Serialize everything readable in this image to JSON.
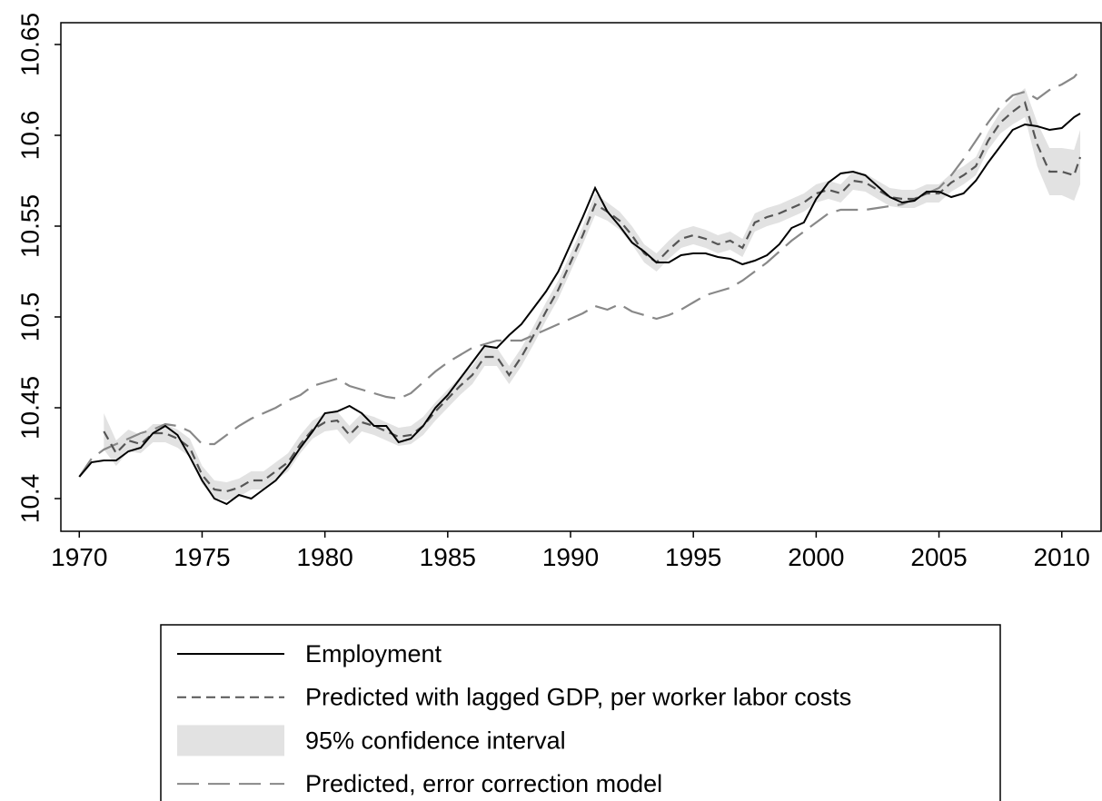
{
  "chart_data": {
    "type": "line",
    "x": [
      1970,
      1970.5,
      1971,
      1971.5,
      1972,
      1972.5,
      1973,
      1973.5,
      1974,
      1974.5,
      1975,
      1975.5,
      1976,
      1976.5,
      1977,
      1977.5,
      1978,
      1978.5,
      1979,
      1979.5,
      1980,
      1980.5,
      1981,
      1981.5,
      1982,
      1982.5,
      1983,
      1983.5,
      1984,
      1984.5,
      1985,
      1985.5,
      1986,
      1986.5,
      1987,
      1987.5,
      1988,
      1988.5,
      1989,
      1989.5,
      1990,
      1990.5,
      1991,
      1991.5,
      1992,
      1992.5,
      1993,
      1993.5,
      1994,
      1994.5,
      1995,
      1995.5,
      1996,
      1996.5,
      1997,
      1997.5,
      1998,
      1998.5,
      1999,
      1999.5,
      2000,
      2000.5,
      2001,
      2001.5,
      2002,
      2002.5,
      2003,
      2003.5,
      2004,
      2004.5,
      2005,
      2005.5,
      2006,
      2006.5,
      2007,
      2007.5,
      2008,
      2008.5,
      2009,
      2009.5,
      2010,
      2010.5,
      2010.75
    ],
    "series": [
      {
        "name": "Employment",
        "color": "#000000",
        "dash": "none",
        "values": [
          10.412,
          10.42,
          10.421,
          10.421,
          10.426,
          10.428,
          10.436,
          10.44,
          10.435,
          10.423,
          10.41,
          10.4,
          10.397,
          10.402,
          10.4,
          10.405,
          10.41,
          10.418,
          10.428,
          10.437,
          10.447,
          10.448,
          10.451,
          10.447,
          10.44,
          10.44,
          10.431,
          10.433,
          10.44,
          10.45,
          10.457,
          10.466,
          10.475,
          10.484,
          10.483,
          10.49,
          10.496,
          10.505,
          10.514,
          10.525,
          10.54,
          10.555,
          10.571,
          10.558,
          10.55,
          10.541,
          10.536,
          10.53,
          10.53,
          10.534,
          10.535,
          10.535,
          10.533,
          10.532,
          10.529,
          10.531,
          10.534,
          10.54,
          10.549,
          10.552,
          10.565,
          10.574,
          10.579,
          10.58,
          10.578,
          10.572,
          10.566,
          10.563,
          10.564,
          10.569,
          10.569,
          10.566,
          10.568,
          10.575,
          10.585,
          10.594,
          10.603,
          10.606,
          10.605,
          10.603,
          10.604,
          10.61,
          10.612
        ]
      },
      {
        "name": "Predicted with lagged GDP, per worker labor costs",
        "color": "#555555",
        "dash": "10,6",
        "values": [
          null,
          null,
          10.437,
          10.425,
          10.432,
          10.43,
          10.436,
          10.436,
          10.433,
          10.428,
          10.413,
          10.405,
          10.404,
          10.406,
          10.41,
          10.41,
          10.415,
          10.42,
          10.43,
          10.438,
          10.442,
          10.443,
          10.435,
          10.442,
          10.44,
          10.437,
          10.434,
          10.435,
          10.44,
          10.448,
          10.455,
          10.462,
          10.468,
          10.478,
          10.478,
          10.468,
          10.478,
          10.49,
          10.503,
          10.515,
          10.53,
          10.545,
          10.562,
          10.558,
          10.553,
          10.545,
          10.535,
          10.53,
          10.537,
          10.543,
          10.545,
          10.543,
          10.54,
          10.542,
          10.538,
          10.552,
          10.555,
          10.557,
          10.56,
          10.563,
          10.568,
          10.57,
          10.568,
          10.575,
          10.574,
          10.57,
          10.566,
          10.565,
          10.565,
          10.568,
          10.568,
          10.574,
          10.578,
          10.583,
          10.597,
          10.607,
          10.613,
          10.618,
          10.595,
          10.58,
          10.58,
          10.578,
          10.588
        ]
      },
      {
        "name": "95% confidence interval",
        "color": "#e2e2e2",
        "band_of": 1,
        "errors": [
          null,
          null,
          0.01,
          0.007,
          0.006,
          0.005,
          0.005,
          0.005,
          0.005,
          0.005,
          0.005,
          0.005,
          0.005,
          0.005,
          0.005,
          0.005,
          0.005,
          0.005,
          0.005,
          0.005,
          0.005,
          0.005,
          0.005,
          0.005,
          0.005,
          0.005,
          0.005,
          0.005,
          0.005,
          0.005,
          0.005,
          0.005,
          0.005,
          0.005,
          0.005,
          0.005,
          0.005,
          0.005,
          0.005,
          0.005,
          0.005,
          0.005,
          0.006,
          0.005,
          0.005,
          0.005,
          0.005,
          0.005,
          0.005,
          0.005,
          0.005,
          0.005,
          0.005,
          0.005,
          0.005,
          0.005,
          0.005,
          0.005,
          0.005,
          0.005,
          0.005,
          0.005,
          0.005,
          0.005,
          0.005,
          0.005,
          0.005,
          0.005,
          0.005,
          0.005,
          0.005,
          0.005,
          0.005,
          0.005,
          0.005,
          0.006,
          0.007,
          0.008,
          0.012,
          0.013,
          0.013,
          0.014,
          0.015
        ]
      },
      {
        "name": "Predicted, error correction model",
        "color": "#888888",
        "dash": "24,10",
        "values": [
          10.412,
          10.422,
          10.427,
          10.43,
          10.433,
          10.436,
          10.438,
          10.441,
          10.44,
          10.437,
          10.43,
          10.43,
          10.435,
          10.44,
          10.444,
          10.447,
          10.45,
          10.454,
          10.457,
          10.462,
          10.464,
          10.466,
          10.462,
          10.46,
          10.458,
          10.456,
          10.455,
          10.458,
          10.464,
          10.47,
          10.475,
          10.479,
          10.483,
          10.485,
          10.487,
          10.487,
          10.487,
          10.49,
          10.493,
          10.496,
          10.499,
          10.502,
          10.506,
          10.504,
          10.507,
          10.503,
          10.501,
          10.499,
          10.501,
          10.504,
          10.508,
          10.512,
          10.514,
          10.516,
          10.52,
          10.525,
          10.53,
          10.536,
          10.542,
          10.547,
          10.552,
          10.557,
          10.559,
          10.559,
          10.559,
          10.56,
          10.561,
          10.562,
          10.565,
          10.568,
          10.571,
          10.578,
          10.587,
          10.597,
          10.607,
          10.616,
          10.622,
          10.624,
          10.62,
          10.625,
          10.628,
          10.632,
          10.636
        ]
      }
    ],
    "xlim": [
      1969.25,
      2011.6
    ],
    "xticks": [
      1970,
      1975,
      1980,
      1985,
      1990,
      1995,
      2000,
      2005,
      2010
    ],
    "ylim": [
      10.382,
      10.662
    ],
    "yticks": [
      10.4,
      10.45,
      10.5,
      10.55,
      10.6,
      10.65
    ],
    "grid": false,
    "legend_position": "bottom"
  }
}
